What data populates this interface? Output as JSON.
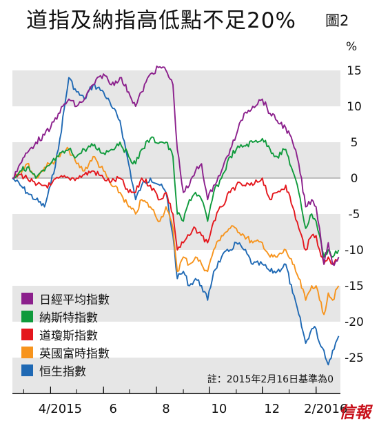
{
  "title": "道指及納指高低點不足20%",
  "figure_label": "圖2",
  "logo_text": "信報",
  "chart_data": {
    "type": "line",
    "ylabel": "%",
    "ylim": [
      -30,
      20
    ],
    "yticks": [
      15,
      10,
      5,
      0,
      -5,
      -10,
      -15,
      -20,
      -25
    ],
    "xlim": [
      "2015-02-16",
      "2016-02-29"
    ],
    "xticks": [
      {
        "date": "2015-04-01",
        "label": "4/2015"
      },
      {
        "date": "2015-06-01",
        "label": "6"
      },
      {
        "date": "2015-08-01",
        "label": "8"
      },
      {
        "date": "2015-10-01",
        "label": "10"
      },
      {
        "date": "2015-12-01",
        "label": "12"
      },
      {
        "date": "2016-02-01",
        "label": "2/2016"
      }
    ],
    "grid": "alternating-bands",
    "legend_position": "bottom-left",
    "note": "註：2015年2月16日基準為0",
    "series": [
      {
        "name": "日經平均指數",
        "color": "#8b1f8c",
        "points": [
          [
            "2015-02-16",
            0
          ],
          [
            "2015-02-25",
            2
          ],
          [
            "2015-03-05",
            3.5
          ],
          [
            "2015-03-15",
            5
          ],
          [
            "2015-03-25",
            6
          ],
          [
            "2015-04-01",
            7
          ],
          [
            "2015-04-10",
            9
          ],
          [
            "2015-04-22",
            11
          ],
          [
            "2015-05-01",
            10
          ],
          [
            "2015-05-10",
            11
          ],
          [
            "2015-05-20",
            13
          ],
          [
            "2015-06-01",
            14.5
          ],
          [
            "2015-06-10",
            13
          ],
          [
            "2015-06-20",
            14
          ],
          [
            "2015-06-30",
            12
          ],
          [
            "2015-07-08",
            10
          ],
          [
            "2015-07-15",
            12
          ],
          [
            "2015-07-25",
            14.5
          ],
          [
            "2015-08-05",
            15.5
          ],
          [
            "2015-08-12",
            15
          ],
          [
            "2015-08-20",
            13
          ],
          [
            "2015-08-25",
            4
          ],
          [
            "2015-09-01",
            -2
          ],
          [
            "2015-09-08",
            -1
          ],
          [
            "2015-09-15",
            1
          ],
          [
            "2015-09-22",
            2
          ],
          [
            "2015-09-29",
            -3
          ],
          [
            "2015-10-06",
            -1
          ],
          [
            "2015-10-15",
            1
          ],
          [
            "2015-10-25",
            4
          ],
          [
            "2015-11-01",
            6
          ],
          [
            "2015-11-10",
            9
          ],
          [
            "2015-11-20",
            10
          ],
          [
            "2015-12-01",
            11
          ],
          [
            "2015-12-10",
            9
          ],
          [
            "2015-12-18",
            8
          ],
          [
            "2015-12-28",
            7
          ],
          [
            "2016-01-05",
            5
          ],
          [
            "2016-01-12",
            2
          ],
          [
            "2016-01-20",
            -4
          ],
          [
            "2016-01-27",
            -3
          ],
          [
            "2016-02-01",
            -4
          ],
          [
            "2016-02-05",
            -7
          ],
          [
            "2016-02-10",
            -12
          ],
          [
            "2016-02-15",
            -9
          ],
          [
            "2016-02-20",
            -12
          ],
          [
            "2016-02-27",
            -11
          ]
        ]
      },
      {
        "name": "納斯特指數",
        "color": "#0f9a3c",
        "points": [
          [
            "2015-02-16",
            0
          ],
          [
            "2015-02-25",
            1
          ],
          [
            "2015-03-05",
            1.5
          ],
          [
            "2015-03-15",
            0
          ],
          [
            "2015-03-25",
            1
          ],
          [
            "2015-04-01",
            2
          ],
          [
            "2015-04-10",
            3
          ],
          [
            "2015-04-22",
            4
          ],
          [
            "2015-05-01",
            3
          ],
          [
            "2015-05-10",
            4
          ],
          [
            "2015-05-20",
            4.5
          ],
          [
            "2015-06-01",
            3.5
          ],
          [
            "2015-06-10",
            4
          ],
          [
            "2015-06-20",
            5
          ],
          [
            "2015-06-30",
            3
          ],
          [
            "2015-07-08",
            2
          ],
          [
            "2015-07-15",
            4
          ],
          [
            "2015-07-25",
            5.5
          ],
          [
            "2015-08-05",
            5
          ],
          [
            "2015-08-12",
            5
          ],
          [
            "2015-08-20",
            3
          ],
          [
            "2015-08-25",
            -5
          ],
          [
            "2015-09-01",
            -6
          ],
          [
            "2015-09-08",
            -3
          ],
          [
            "2015-09-15",
            -2
          ],
          [
            "2015-09-22",
            -3
          ],
          [
            "2015-09-29",
            -6
          ],
          [
            "2015-10-06",
            -2
          ],
          [
            "2015-10-15",
            0
          ],
          [
            "2015-10-25",
            3
          ],
          [
            "2015-11-01",
            4
          ],
          [
            "2015-11-10",
            4.5
          ],
          [
            "2015-11-20",
            5
          ],
          [
            "2015-12-01",
            5.5
          ],
          [
            "2015-12-10",
            4
          ],
          [
            "2015-12-18",
            3
          ],
          [
            "2015-12-28",
            4
          ],
          [
            "2016-01-05",
            1
          ],
          [
            "2016-01-12",
            -2
          ],
          [
            "2016-01-20",
            -7
          ],
          [
            "2016-01-27",
            -5
          ],
          [
            "2016-02-01",
            -6
          ],
          [
            "2016-02-05",
            -8
          ],
          [
            "2016-02-10",
            -11
          ],
          [
            "2016-02-15",
            -10
          ],
          [
            "2016-02-20",
            -11
          ],
          [
            "2016-02-27",
            -10
          ]
        ]
      },
      {
        "name": "道瓊斯指數",
        "color": "#e4171d",
        "points": [
          [
            "2015-02-16",
            0
          ],
          [
            "2015-02-25",
            0.5
          ],
          [
            "2015-03-05",
            0
          ],
          [
            "2015-03-15",
            -1
          ],
          [
            "2015-03-25",
            -1
          ],
          [
            "2015-04-01",
            -1
          ],
          [
            "2015-04-10",
            0
          ],
          [
            "2015-04-22",
            0
          ],
          [
            "2015-05-01",
            0
          ],
          [
            "2015-05-10",
            0.5
          ],
          [
            "2015-05-20",
            1
          ],
          [
            "2015-06-01",
            0
          ],
          [
            "2015-06-10",
            -0.5
          ],
          [
            "2015-06-20",
            0
          ],
          [
            "2015-06-30",
            -2
          ],
          [
            "2015-07-08",
            -2
          ],
          [
            "2015-07-15",
            0
          ],
          [
            "2015-07-25",
            -1
          ],
          [
            "2015-08-05",
            -3
          ],
          [
            "2015-08-12",
            -2
          ],
          [
            "2015-08-20",
            -5
          ],
          [
            "2015-08-25",
            -10
          ],
          [
            "2015-09-01",
            -9
          ],
          [
            "2015-09-08",
            -8
          ],
          [
            "2015-09-15",
            -7
          ],
          [
            "2015-09-22",
            -8
          ],
          [
            "2015-09-29",
            -9
          ],
          [
            "2015-10-06",
            -6
          ],
          [
            "2015-10-15",
            -4
          ],
          [
            "2015-10-25",
            -2
          ],
          [
            "2015-11-01",
            -1
          ],
          [
            "2015-11-10",
            -1
          ],
          [
            "2015-11-20",
            -1
          ],
          [
            "2015-12-01",
            0
          ],
          [
            "2015-12-10",
            -3
          ],
          [
            "2015-12-18",
            -2
          ],
          [
            "2015-12-28",
            -1
          ],
          [
            "2016-01-05",
            -4
          ],
          [
            "2016-01-12",
            -7
          ],
          [
            "2016-01-20",
            -10
          ],
          [
            "2016-01-27",
            -8
          ],
          [
            "2016-02-01",
            -8
          ],
          [
            "2016-02-05",
            -10
          ],
          [
            "2016-02-10",
            -12
          ],
          [
            "2016-02-15",
            -11
          ],
          [
            "2016-02-20",
            -12
          ],
          [
            "2016-02-27",
            -11
          ]
        ]
      },
      {
        "name": "英國富時指數",
        "color": "#f7941d",
        "points": [
          [
            "2015-02-16",
            0
          ],
          [
            "2015-02-25",
            1
          ],
          [
            "2015-03-05",
            2
          ],
          [
            "2015-03-15",
            0
          ],
          [
            "2015-03-25",
            1.5
          ],
          [
            "2015-04-01",
            2
          ],
          [
            "2015-04-10",
            3
          ],
          [
            "2015-04-22",
            4
          ],
          [
            "2015-05-01",
            2
          ],
          [
            "2015-05-10",
            1
          ],
          [
            "2015-05-20",
            3
          ],
          [
            "2015-06-01",
            1
          ],
          [
            "2015-06-10",
            -1
          ],
          [
            "2015-06-20",
            -2
          ],
          [
            "2015-06-30",
            -4
          ],
          [
            "2015-07-08",
            -5
          ],
          [
            "2015-07-15",
            -3
          ],
          [
            "2015-07-25",
            -4
          ],
          [
            "2015-08-05",
            -6
          ],
          [
            "2015-08-12",
            -4
          ],
          [
            "2015-08-20",
            -7
          ],
          [
            "2015-08-25",
            -13
          ],
          [
            "2015-09-01",
            -11
          ],
          [
            "2015-09-08",
            -12
          ],
          [
            "2015-09-15",
            -11
          ],
          [
            "2015-09-22",
            -12
          ],
          [
            "2015-09-29",
            -13
          ],
          [
            "2015-10-06",
            -10
          ],
          [
            "2015-10-15",
            -8
          ],
          [
            "2015-10-25",
            -7
          ],
          [
            "2015-11-01",
            -7
          ],
          [
            "2015-11-10",
            -8
          ],
          [
            "2015-11-20",
            -9
          ],
          [
            "2015-12-01",
            -9
          ],
          [
            "2015-12-10",
            -11
          ],
          [
            "2015-12-18",
            -11
          ],
          [
            "2015-12-28",
            -10
          ],
          [
            "2016-01-05",
            -12
          ],
          [
            "2016-01-12",
            -14
          ],
          [
            "2016-01-20",
            -17
          ],
          [
            "2016-01-27",
            -15
          ],
          [
            "2016-02-01",
            -15
          ],
          [
            "2016-02-05",
            -17
          ],
          [
            "2016-02-10",
            -19
          ],
          [
            "2016-02-15",
            -16
          ],
          [
            "2016-02-20",
            -17
          ],
          [
            "2016-02-27",
            -15
          ]
        ]
      },
      {
        "name": "恒生指數",
        "color": "#1f69b4",
        "points": [
          [
            "2015-02-16",
            0
          ],
          [
            "2015-02-25",
            -1
          ],
          [
            "2015-03-05",
            -2
          ],
          [
            "2015-03-15",
            -3
          ],
          [
            "2015-03-25",
            -4
          ],
          [
            "2015-04-01",
            -1
          ],
          [
            "2015-04-10",
            4
          ],
          [
            "2015-04-22",
            14
          ],
          [
            "2015-05-01",
            12
          ],
          [
            "2015-05-10",
            11
          ],
          [
            "2015-05-20",
            13
          ],
          [
            "2015-06-01",
            12
          ],
          [
            "2015-06-10",
            10
          ],
          [
            "2015-06-20",
            8
          ],
          [
            "2015-06-30",
            2
          ],
          [
            "2015-07-08",
            -3
          ],
          [
            "2015-07-15",
            -1
          ],
          [
            "2015-07-25",
            0
          ],
          [
            "2015-08-05",
            -1
          ],
          [
            "2015-08-12",
            -2
          ],
          [
            "2015-08-20",
            -8
          ],
          [
            "2015-08-25",
            -14
          ],
          [
            "2015-09-01",
            -13
          ],
          [
            "2015-09-08",
            -15
          ],
          [
            "2015-09-15",
            -14
          ],
          [
            "2015-09-22",
            -15
          ],
          [
            "2015-09-29",
            -17
          ],
          [
            "2015-10-06",
            -13
          ],
          [
            "2015-10-15",
            -11
          ],
          [
            "2015-10-25",
            -10
          ],
          [
            "2015-11-01",
            -9
          ],
          [
            "2015-11-10",
            -10
          ],
          [
            "2015-11-20",
            -12
          ],
          [
            "2015-12-01",
            -12
          ],
          [
            "2015-12-10",
            -13
          ],
          [
            "2015-12-18",
            -13
          ],
          [
            "2015-12-28",
            -12
          ],
          [
            "2016-01-05",
            -16
          ],
          [
            "2016-01-12",
            -19
          ],
          [
            "2016-01-20",
            -23
          ],
          [
            "2016-01-27",
            -21
          ],
          [
            "2016-02-01",
            -21
          ],
          [
            "2016-02-05",
            -23
          ],
          [
            "2016-02-10",
            -24
          ],
          [
            "2016-02-15",
            -26
          ],
          [
            "2016-02-20",
            -24
          ],
          [
            "2016-02-27",
            -22
          ]
        ]
      }
    ]
  }
}
